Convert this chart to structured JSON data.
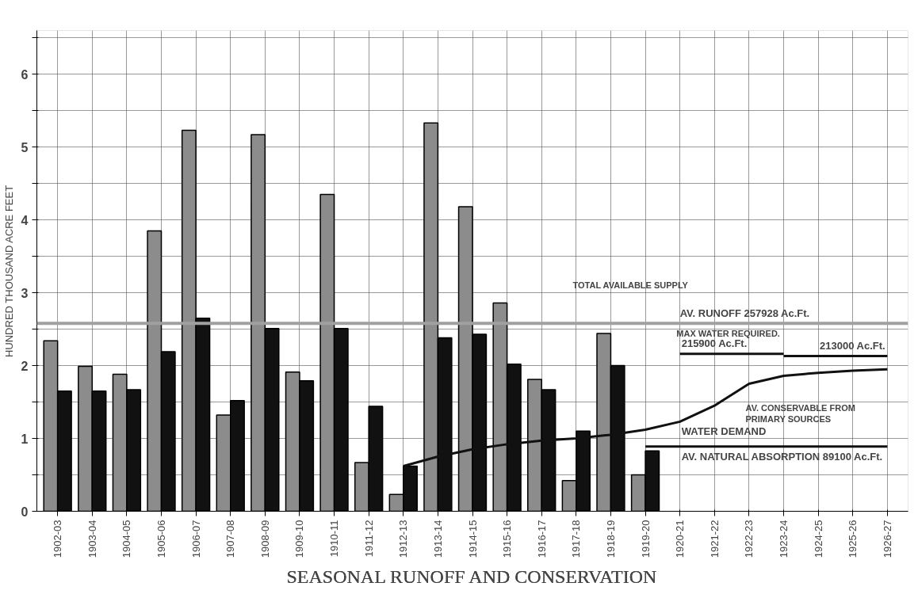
{
  "chart_data": {
    "type": "bar",
    "title": "SEASONAL RUNOFF AND CONSERVATION",
    "ylabel": "HUNDRED THOUSAND ACRE FEET",
    "categories": [
      "1902-03",
      "1903-04",
      "1904-05",
      "1905-06",
      "1906-07",
      "1907-08",
      "1908-09",
      "1909-10",
      "1910-11",
      "1911-12",
      "1912-13",
      "1913-14",
      "1914-15",
      "1915-16",
      "1916-17",
      "1917-18",
      "1918-19",
      "1919-20",
      "1920-21",
      "1921-22",
      "1922-23",
      "1923-24",
      "1924-25",
      "1925-26",
      "1926-27"
    ],
    "series": [
      {
        "color": "#8c8c8c",
        "values": [
          2.34,
          1.99,
          1.88,
          3.85,
          5.23,
          1.32,
          5.17,
          1.91,
          4.35,
          0.67,
          0.23,
          5.33,
          4.18,
          2.86,
          1.81,
          0.42,
          2.44,
          0.5,
          null,
          null,
          null,
          null,
          null,
          null,
          null
        ]
      },
      {
        "color": "#111111",
        "values": [
          1.65,
          1.65,
          1.67,
          2.19,
          2.65,
          1.52,
          2.51,
          1.79,
          2.51,
          1.44,
          0.62,
          2.38,
          2.43,
          2.02,
          1.67,
          1.1,
          2.0,
          0.83,
          null,
          null,
          null,
          null,
          null,
          null,
          null
        ]
      },
      {
        "type": "line",
        "color": "#111111",
        "values": [
          null,
          null,
          null,
          null,
          null,
          null,
          null,
          null,
          null,
          null,
          0.62,
          0.75,
          0.85,
          0.92,
          0.97,
          1.0,
          1.05,
          1.12,
          1.23,
          1.45,
          1.75,
          1.86,
          1.9,
          1.93,
          1.95
        ]
      },
      {
        "type": "line",
        "color": "#111111",
        "values": [
          null,
          null,
          null,
          null,
          null,
          null,
          null,
          null,
          null,
          null,
          null,
          null,
          null,
          null,
          null,
          null,
          null,
          null,
          2.16,
          2.16,
          2.16,
          2.16,
          null,
          null,
          null
        ]
      },
      {
        "type": "line",
        "color": "#111111",
        "values": [
          null,
          null,
          null,
          null,
          null,
          null,
          null,
          null,
          null,
          null,
          null,
          null,
          null,
          null,
          null,
          null,
          null,
          null,
          null,
          null,
          null,
          2.13,
          2.13,
          2.13,
          2.13
        ]
      },
      {
        "type": "line",
        "color": "#111111",
        "values": [
          null,
          null,
          null,
          null,
          null,
          null,
          null,
          null,
          null,
          null,
          null,
          null,
          null,
          null,
          null,
          null,
          null,
          0.89,
          0.89,
          0.89,
          0.89,
          0.89,
          0.89,
          0.89,
          0.89
        ]
      }
    ],
    "ylim": [
      0,
      6.6
    ],
    "yticks": [
      0,
      {
        "value": 0.5,
        "label": null
      },
      1,
      {
        "value": 1.5,
        "label": null
      },
      2,
      {
        "value": 2.5,
        "label": null
      },
      3,
      {
        "value": 3.5,
        "label": null
      },
      4,
      {
        "value": 4.5,
        "label": null
      },
      5,
      {
        "value": 5.5,
        "label": null
      },
      6,
      {
        "value": 6.5,
        "label": null
      }
    ],
    "grid": true,
    "ref_lines": [
      {
        "axis": "y",
        "value": 2.58,
        "label": "AV. RUNOFF 257928 Ac.Ft.",
        "color": "#a0a0a0"
      }
    ],
    "annotations": [
      "TOTAL AVAILABLE SUPPLY",
      "MAX WATER REQUIRED.",
      "AV. CONSERVABLE FROM\nPRIMARY SOURCES",
      {
        "text": "215900 Ac.Ft.",
        "x": "1920-21",
        "y": 2.16
      },
      {
        "text": "213000 Ac.Ft.",
        "x": "1924-25",
        "y": 2.13
      },
      {
        "text": "WATER DEMAND",
        "x": "1920-21",
        "y": 1.23
      },
      {
        "text": "AV. NATURAL ABSORPTION 89100 Ac.Ft.",
        "x": "1920-21",
        "y": 0.89
      }
    ]
  }
}
